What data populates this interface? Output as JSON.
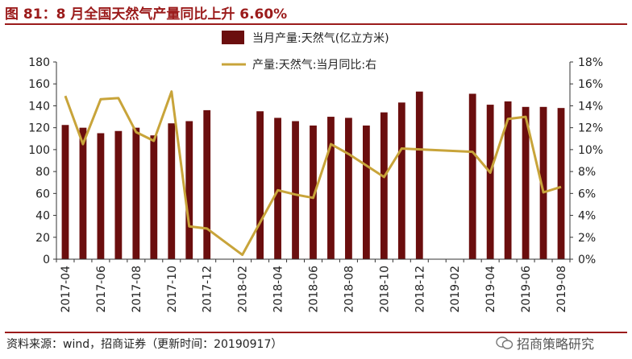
{
  "figure": {
    "title": "图 81：8 月全国天然气产量同比上升 6.60%",
    "source": "资料来源：wind，招商证券（更新时间：20190917）",
    "watermark": "招商策略研究"
  },
  "colors": {
    "bar": "#6b0e0e",
    "line": "#c8a43a",
    "title": "#9b1b1b",
    "axis": "#333333"
  },
  "chart_data": {
    "type": "bar",
    "categories": [
      "2017-04",
      "2017-05",
      "2017-06",
      "2017-07",
      "2017-08",
      "2017-09",
      "2017-10",
      "2017-11",
      "2017-12",
      "2018-01",
      "2018-02",
      "2018-03",
      "2018-04",
      "2018-05",
      "2018-06",
      "2018-07",
      "2018-08",
      "2018-09",
      "2018-10",
      "2018-11",
      "2018-12",
      "2019-01",
      "2019-02",
      "2019-03",
      "2019-04",
      "2019-05",
      "2019-06",
      "2019-07",
      "2019-08"
    ],
    "x_tick_labels": [
      "2017-04",
      "2017-06",
      "2017-08",
      "2017-10",
      "2017-12",
      "2018-02",
      "2018-04",
      "2018-06",
      "2018-08",
      "2018-10",
      "2018-12",
      "2019-02",
      "2019-04",
      "2019-06",
      "2019-08"
    ],
    "series": [
      {
        "name": "当月产量:天然气(亿立方米)",
        "type": "bar",
        "axis": "left",
        "values": [
          122.5,
          120,
          115,
          117,
          120,
          113,
          124,
          126,
          136,
          null,
          null,
          135,
          129,
          126,
          122,
          130,
          129,
          122,
          134,
          143,
          153,
          null,
          null,
          151,
          141,
          144,
          139,
          139,
          138
        ]
      },
      {
        "name": "产量:天然气:当月同比:右",
        "type": "line",
        "axis": "right",
        "values": [
          14.9,
          10.5,
          14.6,
          14.7,
          11.6,
          10.8,
          15.3,
          3.0,
          2.8,
          null,
          0.4,
          null,
          6.3,
          5.9,
          5.6,
          10.5,
          9.6,
          null,
          7.5,
          10.1,
          null,
          null,
          null,
          9.8,
          7.9,
          12.8,
          13.0,
          6.1,
          6.6
        ]
      }
    ],
    "ylim_left": [
      0,
      180
    ],
    "yticks_left": [
      0,
      20,
      40,
      60,
      80,
      100,
      120,
      140,
      160,
      180
    ],
    "ylim_right": [
      0,
      18
    ],
    "yticks_right_labels": [
      "0%",
      "2%",
      "4%",
      "6%",
      "8%",
      "10%",
      "12%",
      "14%",
      "16%",
      "18%"
    ],
    "grid": false,
    "legend_position": "top-center"
  }
}
